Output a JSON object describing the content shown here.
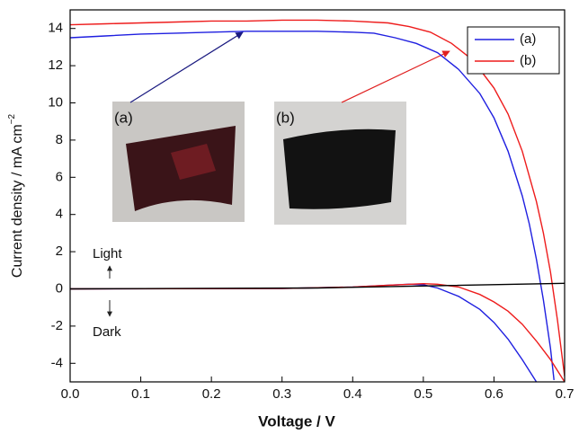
{
  "chart_data": {
    "type": "line",
    "xlabel": "Voltage / V",
    "ylabel": {
      "text": "Current density / mA cm",
      "superscript": "−2"
    },
    "xlim": [
      0,
      0.7
    ],
    "ylim": [
      -5,
      15
    ],
    "xticks": [
      {
        "value": 0,
        "label": "0.0"
      },
      0.1,
      0.2,
      0.3,
      0.4,
      0.5,
      0.6,
      0.7
    ],
    "yticks": [
      -4,
      -2,
      0,
      2,
      4,
      6,
      8,
      10,
      12,
      14
    ],
    "legend": "upper right",
    "annotations": {
      "light": "Light",
      "dark": "Dark",
      "inset_a": "(a)",
      "inset_b": "(b)"
    },
    "series": [
      {
        "name": "(a)",
        "color": "#1f1fe0",
        "x": [
          0,
          0.05,
          0.1,
          0.15,
          0.2,
          0.25,
          0.3,
          0.35,
          0.4,
          0.43,
          0.46,
          0.49,
          0.52,
          0.55,
          0.58,
          0.6,
          0.62,
          0.64,
          0.65,
          0.66,
          0.67,
          0.68,
          0.685
        ],
        "values": [
          13.5,
          13.6,
          13.7,
          13.75,
          13.8,
          13.85,
          13.85,
          13.85,
          13.8,
          13.75,
          13.5,
          13.2,
          12.7,
          11.8,
          10.5,
          9.2,
          7.4,
          5.0,
          3.5,
          1.6,
          -0.6,
          -3.2,
          -4.9
        ]
      },
      {
        "name": "(b)",
        "color": "#ee1c1c",
        "x": [
          0,
          0.05,
          0.1,
          0.15,
          0.2,
          0.25,
          0.3,
          0.35,
          0.4,
          0.45,
          0.48,
          0.51,
          0.54,
          0.57,
          0.6,
          0.62,
          0.64,
          0.66,
          0.67,
          0.68,
          0.69,
          0.7
        ],
        "values": [
          14.2,
          14.25,
          14.3,
          14.35,
          14.4,
          14.4,
          14.45,
          14.45,
          14.4,
          14.3,
          14.1,
          13.8,
          13.2,
          12.3,
          10.8,
          9.4,
          7.4,
          4.7,
          3.0,
          0.9,
          -1.7,
          -4.7
        ]
      },
      {
        "color": "#1f1fe0",
        "x": [
          0,
          0.3,
          0.4,
          0.45,
          0.48,
          0.5,
          0.52,
          0.55,
          0.58,
          0.6,
          0.62,
          0.64,
          0.66
        ],
        "values": [
          0,
          0.02,
          0.1,
          0.2,
          0.25,
          0.22,
          0.05,
          -0.4,
          -1.1,
          -1.8,
          -2.7,
          -3.8,
          -5
        ]
      },
      {
        "color": "#ee1c1c",
        "x": [
          0,
          0.3,
          0.4,
          0.45,
          0.5,
          0.52,
          0.55,
          0.58,
          0.6,
          0.62,
          0.64,
          0.66,
          0.68,
          0.7
        ],
        "values": [
          0,
          0.02,
          0.1,
          0.2,
          0.28,
          0.25,
          0.1,
          -0.3,
          -0.7,
          -1.2,
          -1.9,
          -2.8,
          -3.8,
          -5
        ]
      },
      {
        "color": "#000000",
        "x": [
          0,
          0.35,
          0.7
        ],
        "values": [
          0,
          0.05,
          0.3
        ]
      }
    ]
  }
}
